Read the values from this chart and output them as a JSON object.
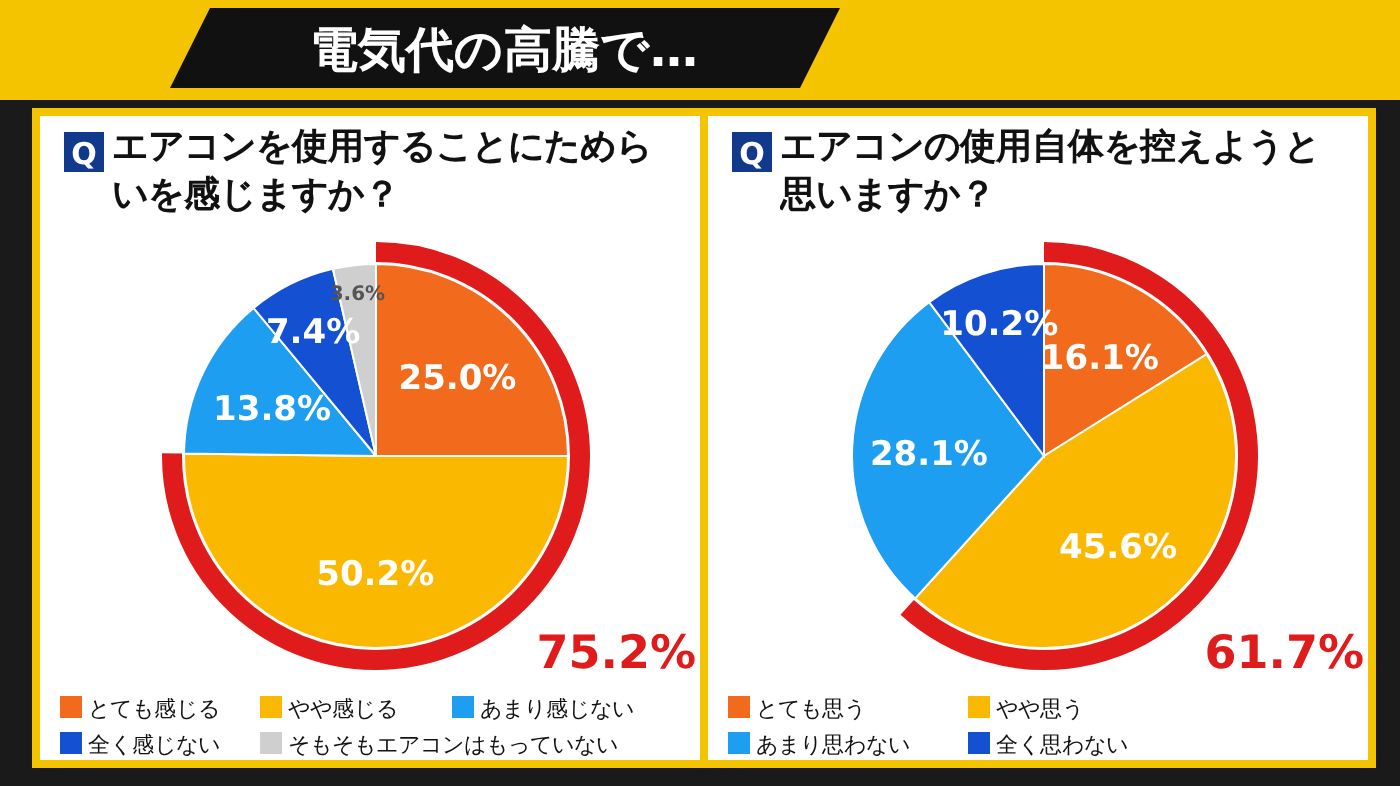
{
  "chart_data": [
    {
      "type": "pie",
      "title": "電気代の高騰で…",
      "subtitle": "エアコンを使用することにためらいを感じますか？",
      "categories": [
        "とても感じる",
        "やや感じる",
        "あまり感じない",
        "全く感じない",
        "そもそもエアコンはもっていない"
      ],
      "values": [
        25.0,
        50.2,
        13.8,
        7.4,
        3.6
      ],
      "colors": [
        "#f26b1d",
        "#fbb800",
        "#1e9ef0",
        "#1450d2",
        "#cfcfcf"
      ],
      "value_labels": [
        "25.0%",
        "50.2%",
        "13.8%",
        "7.4%",
        "3.6%"
      ],
      "legend": "bottom",
      "annotations": [
        "Q",
        "75.2%"
      ]
    },
    {
      "type": "pie",
      "subtitle": "エアコンの使用自体を控えようと思いますか？",
      "categories": [
        "とても思う",
        "やや思う",
        "あまり思わない",
        "全く思わない"
      ],
      "values": [
        16.1,
        45.6,
        28.1,
        10.2
      ],
      "colors": [
        "#f26b1d",
        "#fbb800",
        "#1e9ef0",
        "#1450d2"
      ],
      "value_labels": [
        "16.1%",
        "45.6%",
        "28.1%",
        "10.2%"
      ],
      "legend": "bottom",
      "annotations": [
        "Q",
        "61.7%"
      ]
    }
  ]
}
